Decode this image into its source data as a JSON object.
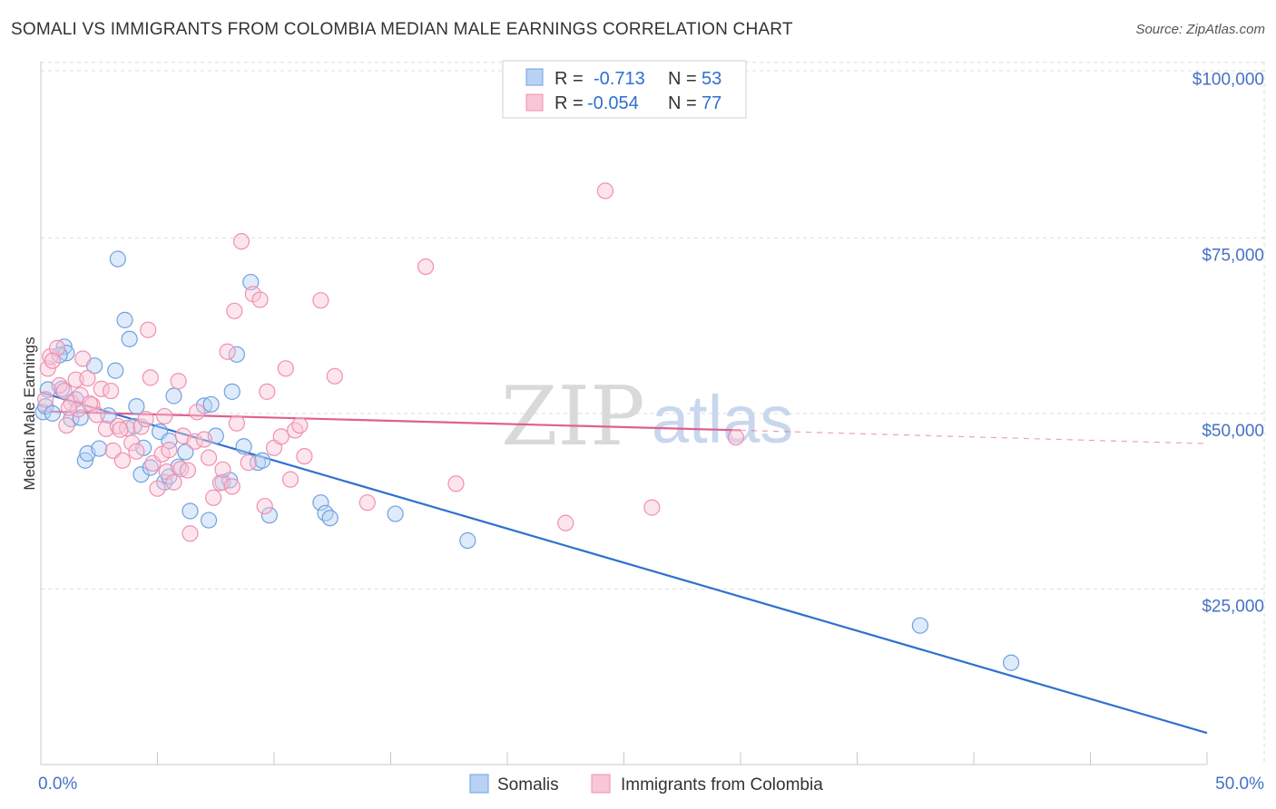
{
  "header": {
    "title": "SOMALI VS IMMIGRANTS FROM COLOMBIA MEDIAN MALE EARNINGS CORRELATION CHART",
    "source": "Source: ZipAtlas.com"
  },
  "watermark": {
    "part1": "ZIP",
    "part2": "atlas"
  },
  "legend": {
    "rows": [
      {
        "r_label": "R =",
        "r_value": "-0.713",
        "n_label": "N =",
        "n_value": "53",
        "color": "#a9c8f0"
      },
      {
        "r_label": "R =",
        "r_value": "-0.054",
        "n_label": "N =",
        "n_value": "77",
        "color": "#f7b7cb"
      }
    ]
  },
  "chart_data": {
    "type": "scatter",
    "ylabel": "Median Male Earnings",
    "xlim": [
      0,
      50
    ],
    "ylim": [
      0,
      105000
    ],
    "x_tick_labels": [
      "0.0%",
      "50.0%"
    ],
    "y_ticks": [
      {
        "value": 100000,
        "label": "$100,000"
      },
      {
        "value": 75000,
        "label": "$75,000"
      },
      {
        "value": 50000,
        "label": "$50,000"
      },
      {
        "value": 25000,
        "label": "$25,000"
      }
    ],
    "grid": true,
    "legend_position": "bottom",
    "series": [
      {
        "name": "Somalis",
        "color": "#6fa0e0",
        "fill": "#b8d2f4",
        "trend": {
          "x": [
            0,
            50
          ],
          "y": [
            53000,
            4500
          ],
          "color": "#3070d0"
        },
        "points": [
          [
            0.1,
            50200
          ],
          [
            0.2,
            51000
          ],
          [
            0.5,
            50000
          ],
          [
            0.9,
            53500
          ],
          [
            1.0,
            59500
          ],
          [
            1.1,
            58600
          ],
          [
            1.3,
            49200
          ],
          [
            1.5,
            52000
          ],
          [
            1.7,
            49400
          ],
          [
            1.9,
            43300
          ],
          [
            2.0,
            44300
          ],
          [
            2.3,
            56800
          ],
          [
            2.5,
            45000
          ],
          [
            2.9,
            49700
          ],
          [
            3.2,
            56100
          ],
          [
            3.3,
            72000
          ],
          [
            3.6,
            63300
          ],
          [
            3.8,
            60600
          ],
          [
            4.0,
            48200
          ],
          [
            4.1,
            51000
          ],
          [
            4.3,
            41300
          ],
          [
            4.4,
            45100
          ],
          [
            4.7,
            42300
          ],
          [
            5.1,
            47400
          ],
          [
            5.3,
            40200
          ],
          [
            5.5,
            46100
          ],
          [
            5.5,
            41000
          ],
          [
            5.7,
            52500
          ],
          [
            5.9,
            42400
          ],
          [
            6.2,
            44500
          ],
          [
            6.4,
            36100
          ],
          [
            7.0,
            51100
          ],
          [
            7.2,
            34800
          ],
          [
            7.3,
            51300
          ],
          [
            7.5,
            46800
          ],
          [
            7.8,
            40200
          ],
          [
            8.1,
            40500
          ],
          [
            8.2,
            53100
          ],
          [
            8.4,
            58400
          ],
          [
            8.7,
            45300
          ],
          [
            9.0,
            68700
          ],
          [
            9.3,
            43000
          ],
          [
            9.5,
            43300
          ],
          [
            9.8,
            35500
          ],
          [
            12.0,
            37300
          ],
          [
            12.2,
            35800
          ],
          [
            12.4,
            35100
          ],
          [
            15.2,
            35700
          ],
          [
            18.3,
            31900
          ],
          [
            37.7,
            19800
          ],
          [
            41.6,
            14500
          ],
          [
            0.3,
            53400
          ],
          [
            0.8,
            58300
          ]
        ]
      },
      {
        "name": "Immigrants from Colombia",
        "color": "#f090b0",
        "fill": "#f8c6d6",
        "trend": {
          "x": [
            0,
            30
          ],
          "y": [
            50300,
            47600
          ],
          "color": "#e0608c"
        },
        "trend_dashed": {
          "x": [
            30,
            50
          ],
          "y": [
            47600,
            45700
          ]
        },
        "points": [
          [
            0.2,
            52000
          ],
          [
            0.3,
            56400
          ],
          [
            0.4,
            58100
          ],
          [
            0.7,
            59300
          ],
          [
            0.8,
            54000
          ],
          [
            1.0,
            53200
          ],
          [
            1.1,
            48300
          ],
          [
            1.3,
            51500
          ],
          [
            1.5,
            54800
          ],
          [
            1.6,
            50600
          ],
          [
            1.7,
            52600
          ],
          [
            1.8,
            57800
          ],
          [
            2.0,
            55000
          ],
          [
            2.2,
            51200
          ],
          [
            2.4,
            49800
          ],
          [
            2.6,
            53500
          ],
          [
            2.8,
            47800
          ],
          [
            3.0,
            53200
          ],
          [
            3.1,
            44700
          ],
          [
            3.3,
            48200
          ],
          [
            3.5,
            43300
          ],
          [
            3.7,
            47900
          ],
          [
            3.9,
            45800
          ],
          [
            4.1,
            44600
          ],
          [
            4.3,
            48100
          ],
          [
            4.5,
            49200
          ],
          [
            4.6,
            61900
          ],
          [
            4.7,
            55100
          ],
          [
            4.8,
            42900
          ],
          [
            5.0,
            39300
          ],
          [
            5.2,
            44200
          ],
          [
            5.4,
            41700
          ],
          [
            5.5,
            44800
          ],
          [
            5.7,
            40200
          ],
          [
            5.9,
            54600
          ],
          [
            6.0,
            42100
          ],
          [
            6.1,
            46800
          ],
          [
            6.3,
            41900
          ],
          [
            6.4,
            32900
          ],
          [
            6.6,
            46000
          ],
          [
            6.7,
            50200
          ],
          [
            7.0,
            46300
          ],
          [
            7.2,
            43700
          ],
          [
            7.4,
            38000
          ],
          [
            7.7,
            40100
          ],
          [
            7.8,
            42000
          ],
          [
            8.0,
            58800
          ],
          [
            8.2,
            39600
          ],
          [
            8.3,
            64600
          ],
          [
            8.4,
            48600
          ],
          [
            8.6,
            74500
          ],
          [
            8.9,
            43000
          ],
          [
            9.1,
            67000
          ],
          [
            9.4,
            66200
          ],
          [
            9.6,
            36800
          ],
          [
            9.7,
            53100
          ],
          [
            10.0,
            45100
          ],
          [
            10.3,
            46700
          ],
          [
            10.5,
            56400
          ],
          [
            10.7,
            40600
          ],
          [
            10.9,
            47600
          ],
          [
            11.1,
            48300
          ],
          [
            11.3,
            43900
          ],
          [
            12.0,
            66100
          ],
          [
            12.6,
            55300
          ],
          [
            14.0,
            37300
          ],
          [
            16.5,
            70900
          ],
          [
            17.8,
            40000
          ],
          [
            22.5,
            34400
          ],
          [
            24.2,
            81700
          ],
          [
            26.2,
            36600
          ],
          [
            29.8,
            46600
          ],
          [
            0.5,
            57500
          ],
          [
            1.2,
            50800
          ],
          [
            2.1,
            51400
          ],
          [
            3.4,
            47700
          ],
          [
            5.3,
            49600
          ]
        ]
      }
    ]
  }
}
